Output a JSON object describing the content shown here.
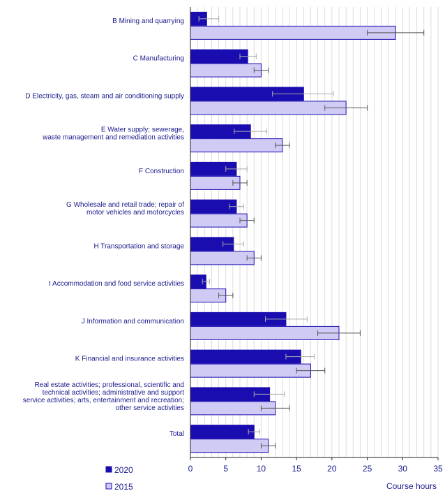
{
  "chart_data": {
    "type": "bar",
    "orientation": "horizontal",
    "categories": [
      [
        "B Mining and quarrying"
      ],
      [
        "C Manufacturing"
      ],
      [
        "D Electricity, gas, steam and air conditioning supply"
      ],
      [
        "E Water supply; sewerage,",
        "waste management and remediation activities"
      ],
      [
        "F Construction"
      ],
      [
        "G Wholesale and retail trade; repair of",
        "motor vehicles and motorcycles"
      ],
      [
        "H Transportation and storage"
      ],
      [
        "I Accommodation and food service activities"
      ],
      [
        "J Information and communication"
      ],
      [
        "K Financial and insurance activities"
      ],
      [
        "Real estate activities; professional, scientific and",
        "technical activities; administrative and support",
        "service activities; arts, entertainment and recreation;",
        "other service activities"
      ],
      [
        "Total"
      ]
    ],
    "series": [
      {
        "name": "2020",
        "color": "#1a0db0",
        "values": [
          2.3,
          8.1,
          16.0,
          8.5,
          6.5,
          6.5,
          6.1,
          2.2,
          13.5,
          15.6,
          11.2,
          9.0
        ],
        "error_low": [
          1.2,
          7.0,
          11.6,
          6.2,
          5.0,
          5.5,
          4.6,
          1.7,
          10.6,
          13.5,
          9.0,
          8.2
        ],
        "error_high": [
          4.0,
          9.3,
          20.2,
          10.8,
          8.0,
          7.5,
          7.5,
          2.7,
          16.5,
          17.5,
          13.3,
          9.8
        ]
      },
      {
        "name": "2015",
        "color": "#cfcbf5",
        "values": [
          29.0,
          10.0,
          22.0,
          13.0,
          7.0,
          8.0,
          9.0,
          5.0,
          21.0,
          17.0,
          12.0,
          11.0
        ],
        "error_low": [
          25.0,
          9.0,
          19.0,
          12.0,
          6.0,
          7.0,
          8.0,
          4.0,
          18.0,
          15.0,
          10.0,
          10.0
        ],
        "error_high": [
          33.0,
          11.0,
          25.0,
          14.0,
          8.0,
          9.0,
          10.0,
          6.0,
          24.0,
          19.0,
          14.0,
          12.0
        ]
      }
    ],
    "xlim": [
      0,
      35
    ],
    "xticks": [
      "0",
      "5",
      "10",
      "15",
      "20",
      "25",
      "30",
      "35"
    ],
    "xlabel": "Course hours",
    "grid": "vertical",
    "legend_position": "bottom-left"
  }
}
